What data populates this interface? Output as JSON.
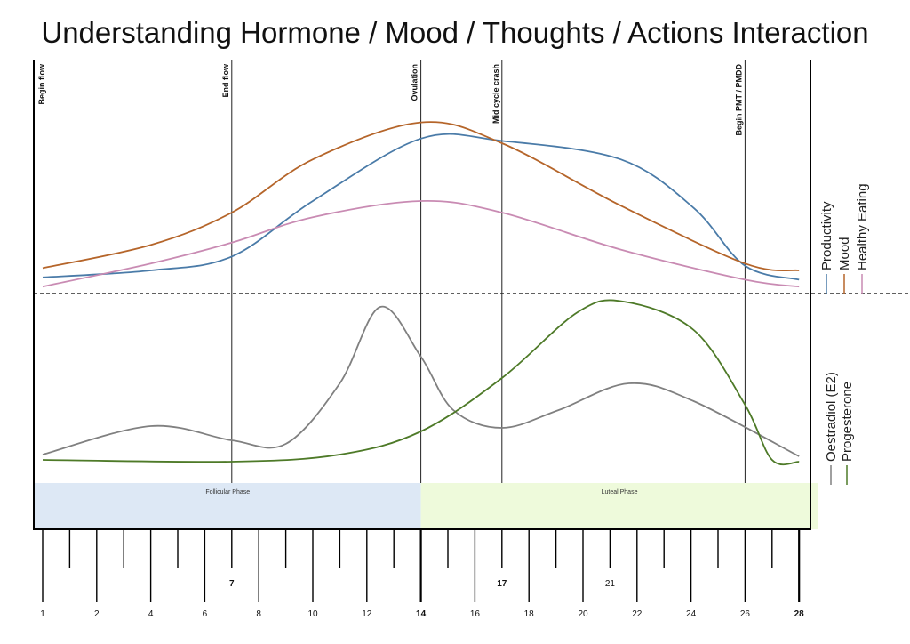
{
  "chart_data": {
    "type": "line",
    "title": "Understanding Hormone / Mood / Thoughts / Actions Interaction",
    "x_ticks": {
      "range": [
        0,
        28
      ],
      "labels": [
        {
          "day": 0,
          "text": "1"
        },
        {
          "day": 2,
          "text": "2"
        },
        {
          "day": 4,
          "text": "4"
        },
        {
          "day": 6,
          "text": "6"
        },
        {
          "day": 8,
          "text": "8"
        },
        {
          "day": 10,
          "text": "10"
        },
        {
          "day": 12,
          "text": "12"
        },
        {
          "day": 14,
          "text": "14"
        },
        {
          "day": 16,
          "text": "16"
        },
        {
          "day": 18,
          "text": "18"
        },
        {
          "day": 20,
          "text": "20"
        },
        {
          "day": 22,
          "text": "22"
        },
        {
          "day": 24,
          "text": "24"
        },
        {
          "day": 26,
          "text": "26"
        },
        {
          "day": 28,
          "text": "28"
        }
      ],
      "mid_labels": [
        {
          "day": 7,
          "text": "7"
        },
        {
          "day": 17,
          "text": "17"
        },
        {
          "day": 21,
          "text": "21"
        }
      ]
    },
    "events": [
      {
        "day": -0.3,
        "label": "Begin flow"
      },
      {
        "day": 7,
        "label": "End flow"
      },
      {
        "day": 14,
        "label": "Ovulation"
      },
      {
        "day": 17,
        "label": "Mid cycle crash"
      },
      {
        "day": 26,
        "label": "Begin PMT / PMDD"
      }
    ],
    "phases": [
      {
        "label": "Follicular Phase",
        "from": -0.3,
        "to": 14,
        "color": "#dde8f5"
      },
      {
        "label": "Luteal Phase",
        "from": 14,
        "to": 28.7,
        "color": "#eefadb"
      }
    ],
    "panels": [
      {
        "series": [
          {
            "name": "Productivity",
            "color": "#4a7ba8",
            "points": [
              [
                0,
                7
              ],
              [
                4,
                10
              ],
              [
                7,
                16
              ],
              [
                10,
                40
              ],
              [
                14,
                67
              ],
              [
                17,
                66
              ],
              [
                21.4,
                58
              ],
              [
                24.1,
                37
              ],
              [
                26,
                12
              ],
              [
                28,
                6
              ]
            ]
          },
          {
            "name": "Mood",
            "color": "#b5652a",
            "points": [
              [
                0,
                11
              ],
              [
                4,
                21
              ],
              [
                7,
                35
              ],
              [
                10,
                58
              ],
              [
                14,
                74
              ],
              [
                17,
                65
              ],
              [
                21.4,
                38
              ],
              [
                26,
                13
              ],
              [
                28,
                10
              ]
            ]
          },
          {
            "name": "Healthy Eating",
            "color": "#c98bb3",
            "points": [
              [
                0,
                3
              ],
              [
                4,
                13
              ],
              [
                7,
                22
              ],
              [
                10,
                33
              ],
              [
                14,
                40
              ],
              [
                17,
                35
              ],
              [
                21.4,
                19
              ],
              [
                26,
                6
              ],
              [
                28,
                3
              ]
            ]
          }
        ]
      },
      {
        "series": [
          {
            "name": "Oestradiol (E2)",
            "color": "#808080",
            "points": [
              [
                0,
                16
              ],
              [
                4,
                32
              ],
              [
                7,
                24
              ],
              [
                9,
                22
              ],
              [
                11,
                56
              ],
              [
                12.5,
                99
              ],
              [
                14,
                71
              ],
              [
                15.2,
                41
              ],
              [
                17,
                31
              ],
              [
                19.1,
                41
              ],
              [
                21.7,
                56
              ],
              [
                24.1,
                46
              ],
              [
                28,
                15
              ]
            ]
          },
          {
            "name": "Progesterone",
            "color": "#4e7a28",
            "points": [
              [
                0,
                13
              ],
              [
                7,
                12
              ],
              [
                11,
                16
              ],
              [
                14,
                29
              ],
              [
                17,
                59
              ],
              [
                19.8,
                96
              ],
              [
                21.5,
                102
              ],
              [
                24.1,
                86
              ],
              [
                26,
                44
              ],
              [
                27,
                13
              ],
              [
                28,
                12
              ]
            ]
          }
        ]
      }
    ]
  }
}
